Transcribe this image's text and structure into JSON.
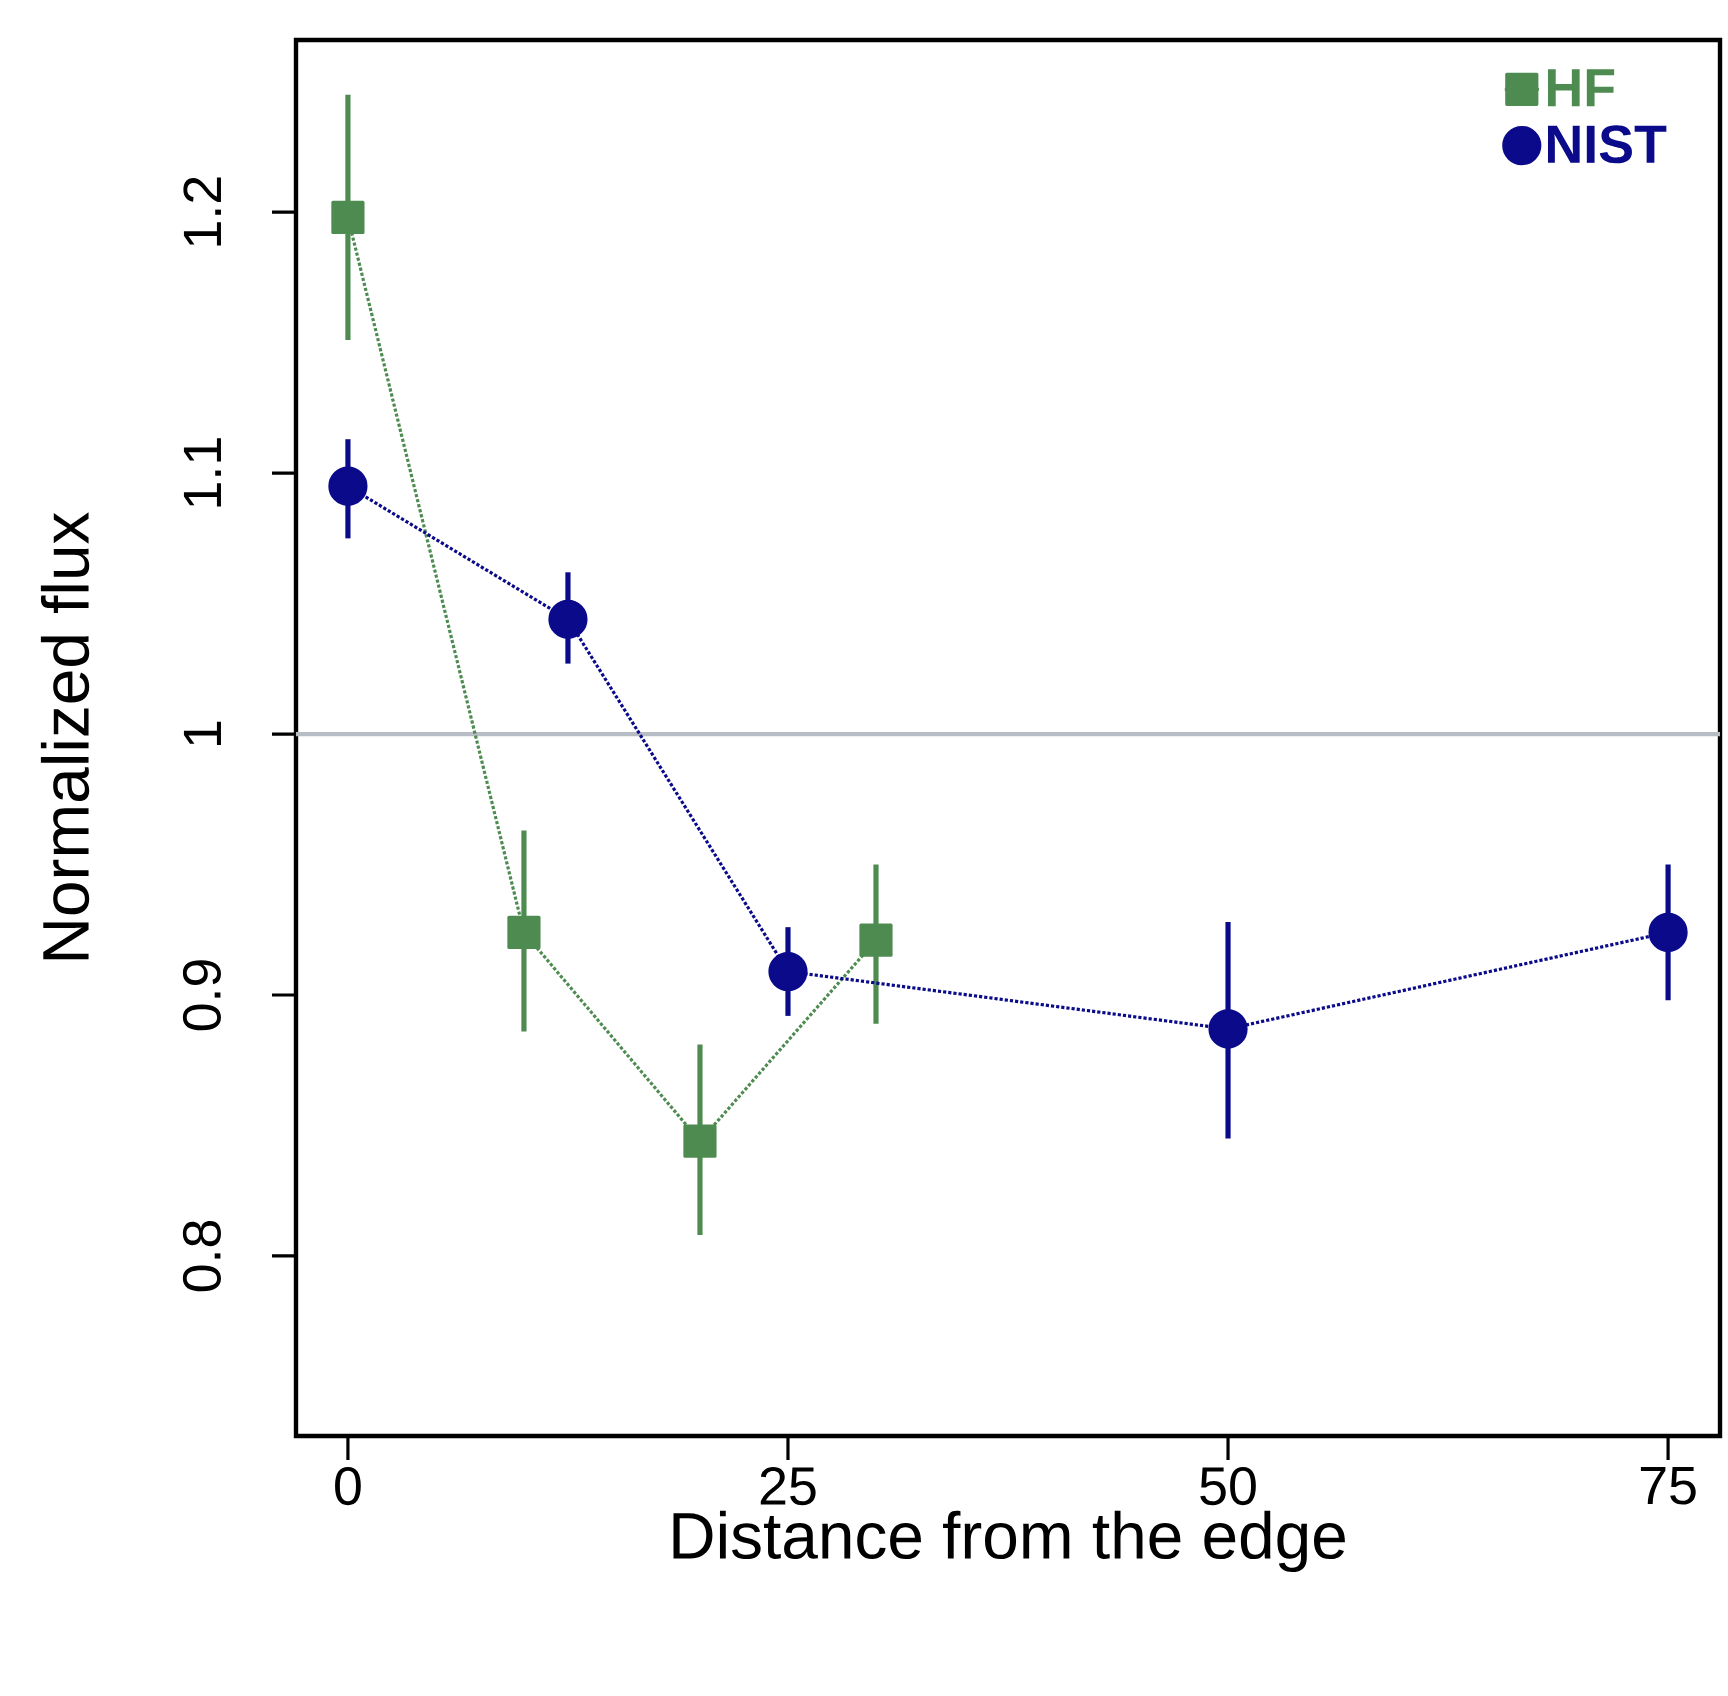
{
  "chart_data": {
    "type": "line",
    "xlabel": "Distance from the edge",
    "ylabel": "Normalized flux",
    "xlim": [
      -2.95,
      77.95
    ],
    "ylim": [
      0.731,
      1.266
    ],
    "xticks": [
      0,
      25,
      50,
      75
    ],
    "yticks": [
      0.8,
      0.9,
      1,
      1.1,
      1.2
    ],
    "legend": "top right",
    "line_style": "dotted",
    "grid": false,
    "series": [
      {
        "name": "HF",
        "color": "#4e8b50",
        "marker": "square",
        "x": [
          0,
          10,
          20,
          30
        ],
        "values": [
          1.198,
          0.924,
          0.844,
          0.921
        ],
        "errors": [
          [
            1.151,
            1.245
          ],
          [
            0.886,
            0.963
          ],
          [
            0.808,
            0.881
          ],
          [
            0.889,
            0.95
          ]
        ]
      },
      {
        "name": "NIST",
        "color": "#0a0a8a",
        "marker": "circle",
        "x": [
          0,
          12.5,
          25,
          50,
          75
        ],
        "values": [
          1.095,
          1.044,
          0.909,
          0.887,
          0.924
        ],
        "errors": [
          [
            1.075,
            1.113
          ],
          [
            1.027,
            1.062
          ],
          [
            0.892,
            0.926
          ],
          [
            0.845,
            0.928
          ],
          [
            0.898,
            0.95
          ]
        ]
      }
    ],
    "ref_lines": [
      {
        "axis": "y",
        "value": 1,
        "color": "#b8bcc4"
      }
    ]
  }
}
